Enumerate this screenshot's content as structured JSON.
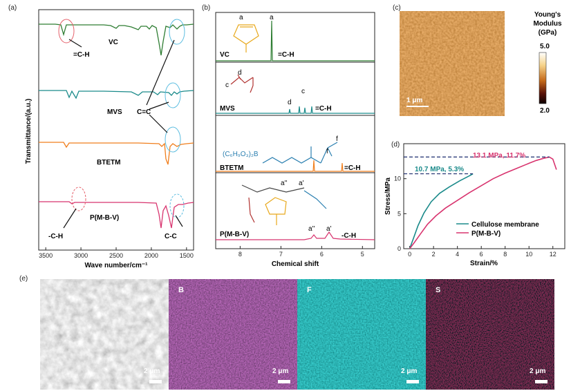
{
  "panel_labels": {
    "a": "(a)",
    "b": "(b)",
    "c": "(c)",
    "d": "(d)",
    "e": "(e)"
  },
  "chart_data": [
    {
      "type": "line",
      "panel": "(a)",
      "xlabel": "Wave number/cm⁻¹",
      "ylabel": "Transmittance/(a.u.)",
      "xticks": [
        "3500",
        "3000",
        "2500",
        "2000",
        "1500"
      ],
      "xlim": [
        3600,
        1400
      ],
      "series": [
        {
          "name": "VC",
          "color": "#2e7d32"
        },
        {
          "name": "MVS",
          "color": "#1a8a8a"
        },
        {
          "name": "BTETM",
          "color": "#f07e1c"
        },
        {
          "name": "P(M-B-V)",
          "color": "#d8336e"
        }
      ],
      "annotations": [
        "=C-H",
        "C=C",
        "-C-H",
        "C-C"
      ]
    },
    {
      "type": "line",
      "panel": "(b)",
      "xlabel": "Chemical shift",
      "xticks": [
        "8",
        "7",
        "6",
        "5"
      ],
      "xlim": [
        8.6,
        4.7
      ],
      "series": [
        {
          "name": "VC",
          "color": "#2e7d32"
        },
        {
          "name": "MVS",
          "color": "#1a8a8a"
        },
        {
          "name": "BTETM",
          "color": "#f07e1c"
        },
        {
          "name": "P(M-B-V)",
          "color": "#d8336e"
        }
      ],
      "annotations": [
        "=C-H",
        "=C-H",
        "=C-H",
        "-C-H",
        "a",
        "c",
        "d",
        "f",
        "a''",
        "a'",
        "(C₆H₉O₃)₂B"
      ]
    },
    {
      "type": "heatmap",
      "panel": "(c)",
      "colorbar_title": [
        "Young's",
        "Modulus",
        "(GPa)"
      ],
      "colorbar_range": [
        2.0,
        5.0
      ],
      "colorbar_labels": [
        "5.0",
        "2.0"
      ],
      "scale_bar": "1 μm"
    },
    {
      "type": "line",
      "panel": "(d)",
      "xlabel": "Strain/%",
      "ylabel": "Stress/MPa",
      "xlim": [
        -0.5,
        13
      ],
      "ylim": [
        0,
        15
      ],
      "xticks": [
        0,
        2,
        4,
        6,
        8,
        10,
        12
      ],
      "yticks": [
        0,
        5,
        10
      ],
      "series": [
        {
          "name": "Cellulose membrane",
          "color": "#1a8a8a",
          "x": [
            0,
            0.3,
            0.7,
            1.2,
            1.8,
            2.5,
            3.3,
            4.2,
            5.0,
            5.3
          ],
          "y": [
            0,
            1.4,
            3.3,
            5.1,
            6.7,
            7.9,
            8.8,
            9.7,
            10.4,
            10.7
          ]
        },
        {
          "name": "P(M-B-V)",
          "color": "#d8336e",
          "x": [
            0,
            0.4,
            0.9,
            1.5,
            2.2,
            3.0,
            4.0,
            5.0,
            6.0,
            7.0,
            8.0,
            9.0,
            10.0,
            10.6,
            11.2,
            11.7,
            12.0,
            12.3
          ],
          "y": [
            0,
            0.9,
            2.1,
            3.5,
            4.7,
            5.8,
            6.9,
            8.0,
            9.0,
            10.0,
            10.8,
            11.5,
            12.2,
            12.6,
            12.9,
            13.1,
            12.8,
            11.3
          ]
        }
      ],
      "annotations": [
        "13.1 MPa, 11.7%",
        "10.7 MPa, 5.3%"
      ]
    }
  ],
  "sem_panels": [
    {
      "label": "",
      "scale": "2 μm"
    },
    {
      "label": "B",
      "scale": "2 μm"
    },
    {
      "label": "F",
      "scale": "2 μm"
    },
    {
      "label": "S",
      "scale": "2 μm"
    }
  ]
}
